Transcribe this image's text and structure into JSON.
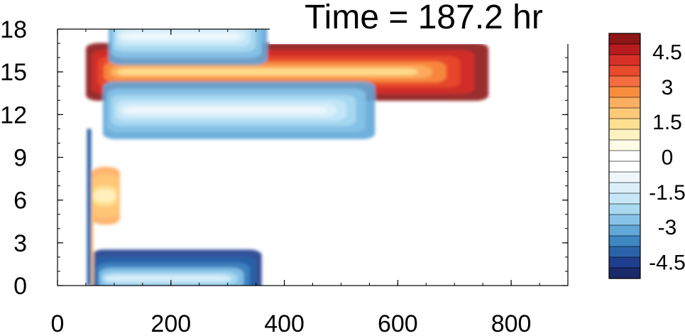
{
  "chart_data": {
    "type": "heatmap",
    "title": "Time = 187.2 hr",
    "xlabel": "",
    "ylabel": "",
    "xlim": [
      0,
      900
    ],
    "ylim": [
      0,
      18
    ],
    "x_ticks": [
      "0",
      "200",
      "400",
      "600",
      "800"
    ],
    "y_ticks": [
      "0",
      "3",
      "6",
      "9",
      "12",
      "15",
      "18"
    ],
    "colorbar": {
      "range": [
        -5.25,
        5.25
      ],
      "step": 0.5,
      "tick_labels": [
        "4.5",
        "3",
        "1.5",
        "0",
        "-1.5",
        "-3",
        "-4.5"
      ],
      "tick_values": [
        4.5,
        3,
        1.5,
        0,
        -1.5,
        -3,
        -4.5
      ],
      "colors": [
        "#8e1518",
        "#b71c1f",
        "#d73027",
        "#e84a2c",
        "#f46d43",
        "#f88d3e",
        "#fdae61",
        "#fdc878",
        "#fee090",
        "#fff1c0",
        "#fffbe6",
        "#ffffff",
        "#ffffff",
        "#eef7fc",
        "#dcf0fa",
        "#c6e7f7",
        "#a8d9f1",
        "#87c3e8",
        "#61a7d8",
        "#3f86c2",
        "#2a63a8",
        "#203e8e",
        "#1b2a6a"
      ]
    },
    "features": [
      {
        "label": "strong positive band",
        "x_range": [
          50,
          760
        ],
        "y_center": 15.0,
        "value": 5.25
      },
      {
        "label": "negative band below",
        "x_range": [
          80,
          560
        ],
        "y_center": 12.3,
        "value": -3.5
      },
      {
        "label": "negative band at top",
        "x_range": [
          90,
          370
        ],
        "y_center": 17.5,
        "value": -3.5
      },
      {
        "label": "negative band at bottom",
        "x_range": [
          60,
          360
        ],
        "y_center": 0.5,
        "value": -5.0
      },
      {
        "label": "positive patch",
        "x_range": [
          60,
          110
        ],
        "y_center": 6.3,
        "value": 2.5
      }
    ]
  }
}
